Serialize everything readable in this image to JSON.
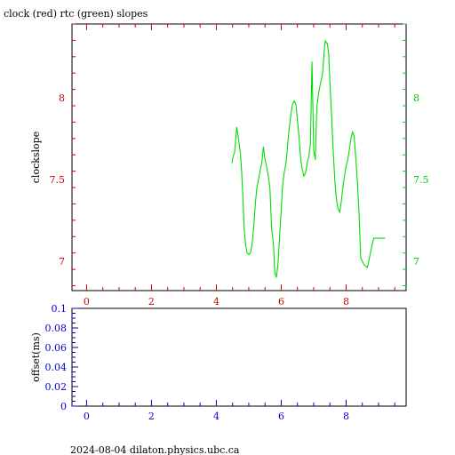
{
  "title": "clock (red) rtc (green) slopes",
  "footer": "2024-08-04 dilaton.physics.ubc.ca",
  "colors": {
    "red": "#cc0000",
    "green": "#00dd00",
    "blue": "#0000cc",
    "axis": "#000000"
  },
  "chart_data": [
    {
      "type": "line",
      "title": "clock (red) rtc (green) slopes",
      "ylabel": "clockslope",
      "xlim": [
        -0.45,
        9.85
      ],
      "ylim": [
        6.82,
        8.45
      ],
      "x_ticks": [
        "0",
        "2",
        "4",
        "6",
        "8"
      ],
      "x_tick_values": [
        0,
        2,
        4,
        6,
        8
      ],
      "y_ticks_left": [
        "7",
        "7.5",
        "8"
      ],
      "y_ticks_right": [
        "7",
        "7.5",
        "8"
      ],
      "y_tick_values": [
        7,
        7.5,
        8
      ],
      "grid": false,
      "series": [
        {
          "color": "#00dd00",
          "x": [
            4.48,
            4.52,
            4.56,
            4.6,
            4.63,
            4.66,
            4.7,
            4.74,
            4.78,
            4.82,
            4.86,
            4.9,
            4.95,
            5.0,
            5.05,
            5.1,
            5.15,
            5.2,
            5.25,
            5.3,
            5.35,
            5.4,
            5.45,
            5.5,
            5.55,
            5.6,
            5.65,
            5.7,
            5.72,
            5.76,
            5.8,
            5.85,
            5.9,
            5.95,
            6.0,
            6.05,
            6.1,
            6.15,
            6.2,
            6.25,
            6.3,
            6.35,
            6.4,
            6.45,
            6.5,
            6.55,
            6.6,
            6.65,
            6.7,
            6.75,
            6.8,
            6.85,
            6.9,
            6.95,
            7.0,
            7.05,
            7.1,
            7.15,
            7.2,
            7.25,
            7.28,
            7.3,
            7.32,
            7.34,
            7.36,
            7.38,
            7.42,
            7.46,
            7.5,
            7.55,
            7.6,
            7.65,
            7.7,
            7.75,
            7.8,
            7.85,
            7.9,
            7.95,
            8.0,
            8.05,
            8.1,
            8.15,
            8.2,
            8.25,
            8.3,
            8.35,
            8.4,
            8.45,
            8.5,
            8.55,
            8.6,
            8.65,
            8.7,
            8.75,
            8.8,
            8.85,
            8.9,
            8.95,
            9.0,
            9.05,
            9.1,
            9.15,
            9.2
          ],
          "y": [
            7.6,
            7.64,
            7.66,
            7.75,
            7.82,
            7.78,
            7.72,
            7.66,
            7.55,
            7.38,
            7.2,
            7.1,
            7.05,
            7.04,
            7.05,
            7.1,
            7.2,
            7.35,
            7.45,
            7.5,
            7.55,
            7.6,
            7.7,
            7.62,
            7.58,
            7.52,
            7.45,
            7.22,
            7.17,
            7.1,
            6.93,
            6.9,
            6.98,
            7.15,
            7.32,
            7.48,
            7.55,
            7.6,
            7.72,
            7.82,
            7.9,
            7.96,
            7.98,
            7.96,
            7.86,
            7.76,
            7.62,
            7.56,
            7.52,
            7.54,
            7.6,
            7.64,
            7.72,
            8.22,
            7.68,
            7.62,
            7.95,
            8.02,
            8.08,
            8.12,
            8.16,
            8.21,
            8.27,
            8.32,
            8.35,
            8.34,
            8.33,
            8.27,
            8.1,
            7.9,
            7.68,
            7.5,
            7.38,
            7.32,
            7.3,
            7.36,
            7.45,
            7.52,
            7.58,
            7.62,
            7.68,
            7.75,
            7.79,
            7.76,
            7.63,
            7.48,
            7.28,
            7.02,
            7.0,
            6.98,
            6.97,
            6.96,
            7.0,
            7.05,
            7.1,
            7.14,
            7.14,
            7.14,
            7.14,
            7.14,
            7.14,
            7.14,
            7.14
          ]
        }
      ]
    },
    {
      "type": "line",
      "ylabel": "offset(ms)",
      "xlim": [
        -0.45,
        9.85
      ],
      "ylim": [
        0,
        0.1
      ],
      "x_ticks": [
        "0",
        "2",
        "4",
        "6",
        "8"
      ],
      "x_tick_values": [
        0,
        2,
        4,
        6,
        8
      ],
      "y_ticks_left": [
        "0",
        "0.02",
        "0.04",
        "0.06",
        "0.08",
        "0.1"
      ],
      "y_tick_values": [
        0,
        0.02,
        0.04,
        0.06,
        0.08,
        0.1
      ],
      "grid": false,
      "series": []
    }
  ]
}
